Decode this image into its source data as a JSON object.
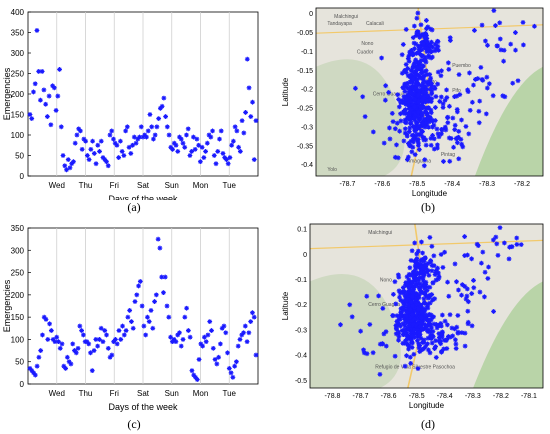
{
  "captions": [
    "(a)",
    "(b)",
    "(c)",
    "(d)"
  ],
  "chart_data": [
    {
      "type": "scatter",
      "xlabel": "Days of the week",
      "ylabel": "Emergencies",
      "x_ticks": [
        "Wed",
        "Thu",
        "Fri",
        "Sat",
        "Sun",
        "Mon",
        "Tue"
      ],
      "ylim": [
        0,
        400
      ],
      "y_ticks": [
        0,
        50,
        100,
        150,
        200,
        250,
        300,
        350,
        400
      ],
      "grid": "vertical",
      "marker_color": "#1a1aff",
      "values": [
        150,
        140,
        205,
        225,
        355,
        255,
        185,
        255,
        210,
        175,
        145,
        195,
        125,
        220,
        215,
        160,
        195,
        260,
        120,
        50,
        25,
        15,
        40,
        20,
        30,
        35,
        80,
        100,
        115,
        110,
        65,
        90,
        85,
        50,
        40,
        65,
        85,
        55,
        30,
        75,
        60,
        85,
        45,
        40,
        35,
        25,
        100,
        110,
        90,
        80,
        75,
        45,
        85,
        60,
        50,
        110,
        120,
        70,
        55,
        75,
        95,
        80,
        90,
        95,
        120,
        95,
        100,
        95,
        110,
        150,
        120,
        90,
        100,
        120,
        140,
        165,
        170,
        190,
        145,
        120,
        100,
        70,
        65,
        80,
        75,
        60,
        95,
        90,
        80,
        70,
        100,
        115,
        50,
        60,
        95,
        65,
        90,
        75,
        35,
        70,
        45,
        60,
        80,
        100,
        95,
        110,
        50,
        30,
        60,
        90,
        110,
        55,
        45,
        40,
        30,
        45,
        75,
        85,
        120,
        110,
        70,
        60,
        135,
        105,
        155,
        285,
        215,
        145,
        180,
        40,
        135
      ]
    },
    {
      "type": "scatter",
      "xlabel": "Days of the week",
      "ylabel": "Emergencies",
      "x_ticks": [
        "Wed",
        "Thu",
        "Fri",
        "Sat",
        "Sun",
        "Mon",
        "Tue"
      ],
      "ylim": [
        0,
        350
      ],
      "y_ticks": [
        0,
        50,
        100,
        150,
        200,
        250,
        300,
        350
      ],
      "grid": "vertical",
      "marker_color": "#1a1aff",
      "values": [
        35,
        30,
        25,
        20,
        40,
        60,
        75,
        110,
        150,
        145,
        100,
        135,
        120,
        100,
        95,
        105,
        95,
        80,
        90,
        40,
        35,
        60,
        50,
        45,
        90,
        75,
        70,
        80,
        130,
        120,
        110,
        95,
        95,
        90,
        70,
        30,
        75,
        100,
        85,
        100,
        125,
        95,
        120,
        110,
        80,
        60,
        65,
        95,
        100,
        90,
        120,
        100,
        130,
        110,
        120,
        150,
        165,
        140,
        125,
        185,
        200,
        220,
        230,
        175,
        130,
        110,
        150,
        140,
        165,
        125,
        185,
        200,
        325,
        305,
        240,
        205,
        240,
        175,
        150,
        105,
        95,
        100,
        95,
        110,
        115,
        85,
        100,
        150,
        170,
        120,
        105,
        30,
        20,
        15,
        10,
        55,
        90,
        85,
        105,
        95,
        110,
        140,
        120,
        80,
        55,
        45,
        60,
        90,
        125,
        130,
        115,
        70,
        35,
        25,
        15,
        40,
        50,
        85,
        100,
        110,
        115,
        130,
        95,
        115,
        140,
        160,
        150,
        65
      ]
    },
    {
      "type": "scatter",
      "xlabel": "Longitude",
      "ylabel": "Latitude",
      "x_ticks": [
        -78.7,
        -78.6,
        -78.5,
        -78.4,
        -78.3,
        -78.2
      ],
      "xlim": [
        -78.79,
        -78.14
      ],
      "y_ticks": [
        -0.4,
        -0.35,
        -0.3,
        -0.25,
        -0.2,
        -0.15,
        -0.1,
        -0.05,
        0
      ],
      "ylim": [
        -0.43,
        0.015
      ],
      "map_labels": [
        "Malchingui",
        "Tandayapa",
        "Calacali",
        "Nono",
        "Cuador",
        "Cerro Guagua Pichincha",
        "Puembo",
        "Pifo",
        "Quito",
        "Amaguana",
        "Pintag",
        "Yolo"
      ],
      "marker_color": "#1a1aff"
    },
    {
      "type": "scatter",
      "xlabel": "Longitude",
      "ylabel": "Latitude",
      "x_ticks": [
        -78.8,
        -78.7,
        -78.6,
        -78.5,
        -78.4,
        -78.3,
        -78.2,
        -78.1
      ],
      "xlim": [
        -78.88,
        -78.05
      ],
      "y_ticks": [
        -0.5,
        -0.4,
        -0.3,
        -0.2,
        -0.1,
        0,
        0.1
      ],
      "ylim": [
        -0.53,
        0.12
      ],
      "map_labels": [
        "Malchingui",
        "Nono",
        "Cerro Guagua Pichincha",
        "Refugio de Vida Silvestre Pasochoa"
      ],
      "marker_color": "#1a1aff"
    }
  ]
}
